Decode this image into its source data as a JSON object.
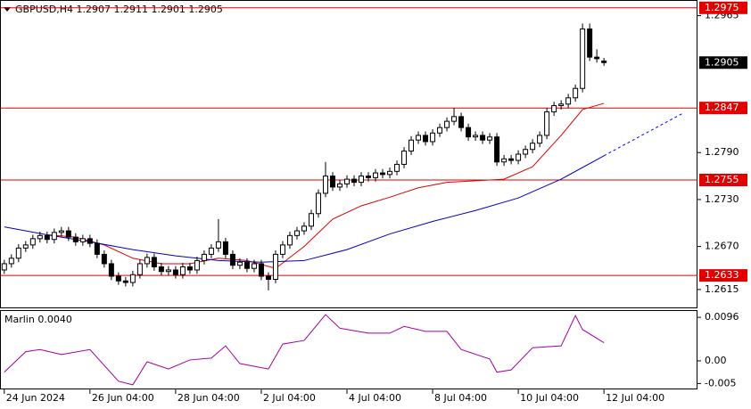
{
  "chart_data": [
    {
      "type": "candlestick",
      "title": "GBPUSD,H4  1.2907 1.2911 1.2901 1.2905",
      "xlim": [
        -0.6,
        97.1
      ],
      "ylim": [
        1.2591,
        1.2985
      ],
      "yticks": [
        1.2965,
        {
          "value": 1.279,
          "label": "1.2790"
        },
        {
          "value": 1.273,
          "label": "1.2730"
        },
        {
          "value": 1.267,
          "label": "1.2670"
        },
        1.2615
      ],
      "xticks": [
        {
          "value": 0,
          "label": "24 Jun 2024"
        },
        {
          "value": 12,
          "label": "26 Jun 04:00"
        },
        {
          "value": 24,
          "label": "28 Jun 04:00"
        },
        {
          "value": 36,
          "label": "2 Jul 04:00"
        },
        {
          "value": 48,
          "label": "4 Jul 04:00"
        },
        {
          "value": 60,
          "label": "8 Jul 04:00"
        },
        {
          "value": 72,
          "label": "10 Jul 04:00"
        },
        {
          "value": 84,
          "label": "12 Jul 04:00"
        }
      ],
      "levels": [
        1.2975,
        1.2847,
        1.2755,
        1.2633
      ],
      "level_color": "#e00000",
      "last_price": 1.2905,
      "open": [
        1.264,
        1.2648,
        1.2655,
        1.2668,
        1.2672,
        1.268,
        1.2684,
        1.2679,
        1.2688,
        1.269,
        1.2682,
        1.2676,
        1.268,
        1.2674,
        1.266,
        1.2648,
        1.2632,
        1.2626,
        1.2624,
        1.2634,
        1.2648,
        1.2656,
        1.2644,
        1.2638,
        1.264,
        1.2634,
        1.2644,
        1.264,
        1.2652,
        1.266,
        1.2668,
        1.2676,
        1.266,
        1.2646,
        1.265,
        1.2642,
        1.2648,
        1.2632,
        1.2628,
        1.266,
        1.2672,
        1.2684,
        1.269,
        1.2696,
        1.2712,
        1.2738,
        1.276,
        1.2746,
        1.275,
        1.2756,
        1.2752,
        1.276,
        1.2758,
        1.2764,
        1.2762,
        1.2766,
        1.2775,
        1.2792,
        1.2806,
        1.2812,
        1.2804,
        1.2815,
        1.2822,
        1.283,
        1.2836,
        1.2822,
        1.281,
        1.2812,
        1.2806,
        1.281,
        1.2778,
        1.2782,
        1.278,
        1.2788,
        1.2794,
        1.2802,
        1.2812,
        1.2842,
        1.285,
        1.2852,
        1.286,
        1.2872,
        1.2948,
        1.2912,
        1.2907
      ],
      "high": [
        1.2653,
        1.266,
        1.2673,
        1.2677,
        1.2685,
        1.2689,
        1.2689,
        1.2693,
        1.2695,
        1.2695,
        1.2687,
        1.2685,
        1.2685,
        1.2679,
        1.2665,
        1.2653,
        1.2637,
        1.2631,
        1.2639,
        1.2653,
        1.2661,
        1.2661,
        1.2649,
        1.2645,
        1.2645,
        1.2649,
        1.2649,
        1.2657,
        1.2665,
        1.2673,
        1.2705,
        1.2681,
        1.2665,
        1.2655,
        1.2655,
        1.2653,
        1.2653,
        1.2637,
        1.2665,
        1.2677,
        1.2689,
        1.2695,
        1.2701,
        1.2717,
        1.2743,
        1.2778,
        1.2765,
        1.2755,
        1.2761,
        1.2761,
        1.2765,
        1.2765,
        1.2769,
        1.2769,
        1.2771,
        1.278,
        1.2797,
        1.2811,
        1.2817,
        1.2817,
        1.282,
        1.2827,
        1.2835,
        1.2847,
        1.2841,
        1.2827,
        1.2817,
        1.2817,
        1.2815,
        1.2815,
        1.2787,
        1.2787,
        1.2793,
        1.2799,
        1.2807,
        1.2817,
        1.2847,
        1.2855,
        1.2857,
        1.2865,
        1.2877,
        1.2955,
        1.2955,
        1.2922,
        1.2911
      ],
      "low": [
        1.2635,
        1.2643,
        1.265,
        1.2663,
        1.2667,
        1.2675,
        1.2674,
        1.2674,
        1.2683,
        1.2677,
        1.2671,
        1.2671,
        1.2669,
        1.2655,
        1.2643,
        1.2627,
        1.2621,
        1.2619,
        1.2619,
        1.2629,
        1.2643,
        1.2639,
        1.2633,
        1.2633,
        1.2629,
        1.2629,
        1.2635,
        1.2635,
        1.2647,
        1.2655,
        1.2663,
        1.2655,
        1.2641,
        1.2641,
        1.2637,
        1.2637,
        1.2627,
        1.2614,
        1.2623,
        1.2655,
        1.2667,
        1.2679,
        1.2685,
        1.2691,
        1.2707,
        1.2733,
        1.2741,
        1.2741,
        1.2745,
        1.2747,
        1.2747,
        1.2753,
        1.2753,
        1.2757,
        1.2757,
        1.2761,
        1.277,
        1.2787,
        1.2801,
        1.2799,
        1.2799,
        1.281,
        1.2817,
        1.2825,
        1.2817,
        1.2805,
        1.2805,
        1.2801,
        1.2801,
        1.2773,
        1.2773,
        1.2775,
        1.2775,
        1.2783,
        1.2789,
        1.2797,
        1.2807,
        1.2837,
        1.2845,
        1.2847,
        1.2855,
        1.2867,
        1.2907,
        1.2905,
        1.2901
      ],
      "close": [
        1.2648,
        1.2655,
        1.2668,
        1.2672,
        1.268,
        1.2684,
        1.2679,
        1.2688,
        1.269,
        1.2682,
        1.2676,
        1.268,
        1.2674,
        1.266,
        1.2648,
        1.2632,
        1.2626,
        1.2624,
        1.2634,
        1.2648,
        1.2656,
        1.2644,
        1.2638,
        1.264,
        1.2634,
        1.2644,
        1.264,
        1.2652,
        1.266,
        1.2668,
        1.2676,
        1.266,
        1.2646,
        1.265,
        1.2642,
        1.2648,
        1.2632,
        1.2628,
        1.266,
        1.2672,
        1.2684,
        1.269,
        1.2696,
        1.2712,
        1.2738,
        1.276,
        1.2746,
        1.275,
        1.2756,
        1.2752,
        1.276,
        1.2758,
        1.2764,
        1.2762,
        1.2766,
        1.2775,
        1.2792,
        1.2806,
        1.2812,
        1.2804,
        1.2815,
        1.2822,
        1.283,
        1.2836,
        1.2822,
        1.281,
        1.2812,
        1.2806,
        1.281,
        1.2778,
        1.2782,
        1.278,
        1.2788,
        1.2794,
        1.2802,
        1.2812,
        1.2842,
        1.285,
        1.2852,
        1.286,
        1.2872,
        1.2948,
        1.2912,
        1.291,
        1.2905
      ],
      "series": [
        {
          "color": "#e00000",
          "x": [
            6,
            10,
            14,
            18,
            22,
            26,
            30,
            34,
            38,
            42,
            46,
            50,
            54,
            58,
            62,
            66,
            70,
            74,
            78,
            81,
            84
          ],
          "values": [
            1.2685,
            1.2682,
            1.2672,
            1.2655,
            1.2648,
            1.2648,
            1.2655,
            1.2652,
            1.2642,
            1.267,
            1.2705,
            1.2722,
            1.2733,
            1.2745,
            1.2752,
            1.2754,
            1.2756,
            1.2772,
            1.2812,
            1.2845,
            1.2853
          ]
        },
        {
          "color": "#0000c0",
          "x": [
            0,
            6,
            12,
            18,
            24,
            30,
            36,
            42,
            48,
            54,
            60,
            66,
            72,
            78,
            84
          ],
          "values": [
            1.2695,
            1.2685,
            1.2676,
            1.2666,
            1.2658,
            1.2652,
            1.265,
            1.2652,
            1.2666,
            1.2686,
            1.2702,
            1.2716,
            1.2732,
            1.2756,
            1.2786
          ]
        },
        {
          "color": "#0000ff",
          "dashed": true,
          "x": [
            84,
            95
          ],
          "values": [
            1.2786,
            1.284
          ]
        }
      ]
    },
    {
      "type": "line",
      "title": "Marlin 0.0040",
      "xlim": [
        -0.6,
        97.1
      ],
      "ylim": [
        -0.0063,
        0.011
      ],
      "yticks": [
        0.0096,
        {
          "value": 0,
          "label": "0.00"
        },
        -0.005
      ],
      "series": [
        {
          "color": "#a000a0",
          "x": [
            0,
            3,
            5,
            8,
            12,
            14,
            16,
            18,
            20,
            23,
            26,
            29,
            31,
            33,
            37,
            39,
            42,
            45,
            47,
            51,
            54,
            56,
            59,
            62,
            64,
            68,
            69,
            71,
            74,
            78,
            80,
            81,
            84
          ],
          "values": [
            -0.0025,
            0.002,
            0.0025,
            0.0014,
            0.0025,
            -0.001,
            -0.0045,
            -0.0053,
            -0.0002,
            -0.0018,
            0.0002,
            0.0006,
            0.0033,
            -0.0006,
            -0.0018,
            0.0037,
            0.0045,
            0.0102,
            0.0072,
            0.0061,
            0.0061,
            0.0076,
            0.0065,
            0.0065,
            0.0025,
            0.0004,
            -0.0025,
            -0.002,
            0.0029,
            0.0033,
            0.01,
            0.0069,
            0.004
          ]
        }
      ]
    }
  ]
}
